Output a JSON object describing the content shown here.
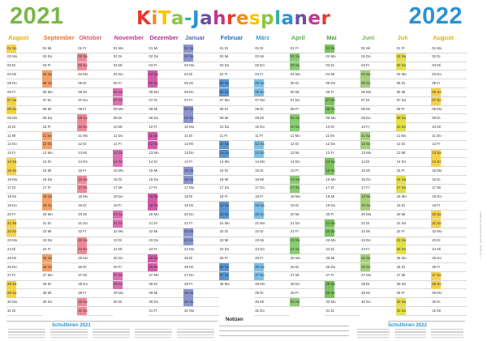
{
  "header": {
    "year_left": "2021",
    "year_right": "2022",
    "title_chars": [
      {
        "c": "K",
        "color": "#e8382d"
      },
      {
        "c": "i",
        "color": "#f08a1c"
      },
      {
        "c": "T",
        "color": "#f5c400"
      },
      {
        "c": "a",
        "color": "#8dc63f"
      },
      {
        "c": "-",
        "color": "#2cb5a7"
      },
      {
        "c": "J",
        "color": "#2a93d5"
      },
      {
        "c": "a",
        "color": "#6a4fa3"
      },
      {
        "c": "h",
        "color": "#c2368e"
      },
      {
        "c": "r",
        "color": "#e8382d"
      },
      {
        "c": "e",
        "color": "#f08a1c"
      },
      {
        "c": "s",
        "color": "#f5c400"
      },
      {
        "c": "p",
        "color": "#8dc63f"
      },
      {
        "c": "l",
        "color": "#2cb5a7"
      },
      {
        "c": "a",
        "color": "#2a93d5"
      },
      {
        "c": "n",
        "color": "#6a4fa3"
      },
      {
        "c": "e",
        "color": "#c2368e"
      },
      {
        "c": "r",
        "color": "#e8382d"
      }
    ]
  },
  "months": [
    {
      "name": "August",
      "color": "#e0b000",
      "bar": "#f5d24a",
      "start_dow": 6,
      "days": 31
    },
    {
      "name": "September",
      "color": "#e8762c",
      "bar": "#f4a066",
      "start_dow": 2,
      "days": 30
    },
    {
      "name": "Oktober",
      "color": "#e05a6b",
      "bar": "#ee8a98",
      "start_dow": 4,
      "days": 31
    },
    {
      "name": "November",
      "color": "#c2368e",
      "bar": "#dd6fb4",
      "start_dow": 0,
      "days": 30
    },
    {
      "name": "Dezember",
      "color": "#b0348a",
      "bar": "#d05aa8",
      "start_dow": 2,
      "days": 31
    },
    {
      "name": "Januar",
      "color": "#5c6bb5",
      "bar": "#8a95cf",
      "start_dow": 5,
      "days": 31
    },
    {
      "name": "Februar",
      "color": "#2a6fb5",
      "bar": "#5a95d0",
      "start_dow": 1,
      "days": 28
    },
    {
      "name": "März",
      "color": "#3a9ad5",
      "bar": "#7cc0e6",
      "start_dow": 1,
      "days": 31
    },
    {
      "name": "April",
      "color": "#5ab04a",
      "bar": "#8ccc74",
      "start_dow": 4,
      "days": 30
    },
    {
      "name": "Mai",
      "color": "#4aa23a",
      "bar": "#7cc35e",
      "start_dow": 6,
      "days": 31
    },
    {
      "name": "Juni",
      "color": "#7ab648",
      "bar": "#a6d078",
      "start_dow": 2,
      "days": 30
    },
    {
      "name": "Juli",
      "color": "#c9c400",
      "bar": "#e4e04a",
      "start_dow": 4,
      "days": 31
    },
    {
      "name": "August",
      "color": "#e0b000",
      "bar": "#f5d24a",
      "start_dow": 0,
      "days": 31
    }
  ],
  "weekday_abbr": [
    "Mo",
    "Di",
    "Mi",
    "Do",
    "Fr",
    "Sa",
    "So"
  ],
  "footer": {
    "notes_label": "Notizen",
    "school_2021": "Schulferien 2021",
    "school_2022": "Schulferien 2022"
  },
  "side_text": "© by Verlag · Kita-Jahresplaner 2021/2022"
}
